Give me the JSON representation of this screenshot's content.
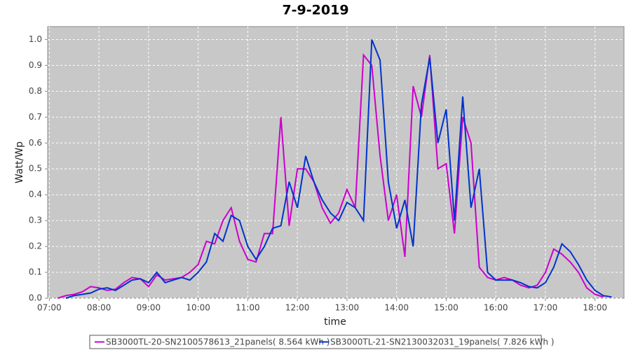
{
  "chart_data": {
    "type": "line",
    "title": "7-9-2019",
    "x_label": "time",
    "y_label": "Watt/Wp",
    "x": [
      "07:10",
      "07:20",
      "07:30",
      "07:40",
      "07:50",
      "08:00",
      "08:10",
      "08:20",
      "08:30",
      "08:40",
      "08:50",
      "09:00",
      "09:10",
      "09:20",
      "09:30",
      "09:40",
      "09:50",
      "10:00",
      "10:10",
      "10:20",
      "10:30",
      "10:40",
      "10:50",
      "11:00",
      "11:10",
      "11:20",
      "11:30",
      "11:40",
      "11:50",
      "12:00",
      "12:10",
      "12:20",
      "12:30",
      "12:40",
      "12:50",
      "13:00",
      "13:10",
      "13:20",
      "13:30",
      "13:40",
      "13:50",
      "14:00",
      "14:10",
      "14:20",
      "14:30",
      "14:40",
      "14:50",
      "15:00",
      "15:10",
      "15:20",
      "15:30",
      "15:40",
      "15:50",
      "16:00",
      "16:10",
      "16:20",
      "16:30",
      "16:40",
      "16:50",
      "17:00",
      "17:10",
      "17:20",
      "17:30",
      "17:40",
      "17:50",
      "18:00",
      "18:10",
      "18:20"
    ],
    "series": [
      {
        "name": "SB3000TL-20-SN2100578613_21panels( 8.564 kWh )",
        "color": "#cc00cc",
        "values": [
          0.0,
          0.01,
          0.015,
          0.025,
          0.045,
          0.04,
          0.03,
          0.035,
          0.06,
          0.08,
          0.075,
          0.045,
          0.09,
          0.07,
          0.075,
          0.08,
          0.1,
          0.13,
          0.22,
          0.21,
          0.3,
          0.35,
          0.22,
          0.15,
          0.14,
          0.25,
          0.25,
          0.7,
          0.28,
          0.5,
          0.5,
          0.45,
          0.35,
          0.29,
          0.33,
          0.42,
          0.35,
          0.94,
          0.9,
          0.55,
          0.3,
          0.4,
          0.16,
          0.82,
          0.7,
          0.94,
          0.5,
          0.52,
          0.25,
          0.7,
          0.6,
          0.12,
          0.08,
          0.07,
          0.08,
          0.07,
          0.05,
          0.04,
          0.05,
          0.1,
          0.19,
          0.17,
          0.14,
          0.1,
          0.04,
          0.015,
          0.005,
          null
        ]
      },
      {
        "name": "SB3000TL-21-SN2130032031_19panels( 7.826 kWh )",
        "color": "#0033cc",
        "values": [
          null,
          0.0,
          0.01,
          0.015,
          0.02,
          0.035,
          0.04,
          0.03,
          0.05,
          0.07,
          0.075,
          0.06,
          0.1,
          0.06,
          0.07,
          0.08,
          0.07,
          0.1,
          0.14,
          0.25,
          0.22,
          0.32,
          0.3,
          0.2,
          0.15,
          0.2,
          0.27,
          0.28,
          0.45,
          0.35,
          0.55,
          0.45,
          0.38,
          0.33,
          0.3,
          0.37,
          0.35,
          0.3,
          1.0,
          0.92,
          0.45,
          0.27,
          0.38,
          0.2,
          0.75,
          0.93,
          0.6,
          0.73,
          0.3,
          0.78,
          0.35,
          0.5,
          0.1,
          0.07,
          0.07,
          0.07,
          0.06,
          0.045,
          0.04,
          0.06,
          0.12,
          0.21,
          0.18,
          0.13,
          0.07,
          0.03,
          0.01,
          0.005
        ]
      }
    ],
    "xlim": [
      "06:58",
      "18:35"
    ],
    "xticks": [
      "07:00",
      "08:00",
      "09:00",
      "10:00",
      "11:00",
      "12:00",
      "13:00",
      "14:00",
      "15:00",
      "16:00",
      "17:00",
      "18:00"
    ],
    "ylim": [
      0,
      1.05
    ],
    "yticks": [
      {
        "value": 0,
        "label": "0.0"
      },
      0.1,
      0.2,
      0.3,
      0.4,
      0.5,
      0.6,
      0.7,
      0.8,
      0.9,
      {
        "value": 1,
        "label": "1.0"
      }
    ],
    "grid": true,
    "legend": "bottom"
  }
}
